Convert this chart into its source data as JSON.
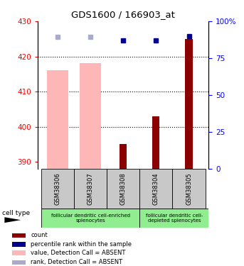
{
  "title": "GDS1600 / 166903_at",
  "samples": [
    "GSM38306",
    "GSM38307",
    "GSM38308",
    "GSM38304",
    "GSM38305"
  ],
  "x_positions": [
    1,
    2,
    3,
    4,
    5
  ],
  "ylim_left": [
    388,
    430
  ],
  "ylim_right": [
    0,
    100
  ],
  "yticks_left": [
    390,
    400,
    410,
    420,
    430
  ],
  "yticks_right": [
    0,
    25,
    50,
    75,
    100
  ],
  "ytick_labels_right": [
    "0",
    "25",
    "50",
    "75",
    "100%"
  ],
  "bar_values_pink": [
    416,
    418,
    null,
    null,
    null
  ],
  "bar_values_red": [
    null,
    null,
    395,
    403,
    425
  ],
  "dot_values_lightblue": [
    425.5,
    425.5,
    null,
    null,
    null
  ],
  "dot_values_blue": [
    null,
    null,
    424.5,
    424.5,
    425.7
  ],
  "color_pink": "#FFB6B6",
  "color_red": "#8B0000",
  "color_lightblue": "#AAAACC",
  "color_blue": "#00008B",
  "group1_label": "follicular dendritic cell-enriched\nsplenocytes",
  "group2_label": "follicular dendritic cell-\ndepleted splenocytes",
  "cell_type_label": "cell type",
  "legend_items": [
    {
      "color": "#8B0000",
      "label": "count"
    },
    {
      "color": "#00008B",
      "label": "percentile rank within the sample"
    },
    {
      "color": "#FFB6B6",
      "label": "value, Detection Call = ABSENT"
    },
    {
      "color": "#AAAACC",
      "label": "rank, Detection Call = ABSENT"
    }
  ],
  "dotted_lines": [
    400,
    410,
    420
  ],
  "bg_xlabel": "#C8C8C8",
  "bg_group": "#90EE90"
}
